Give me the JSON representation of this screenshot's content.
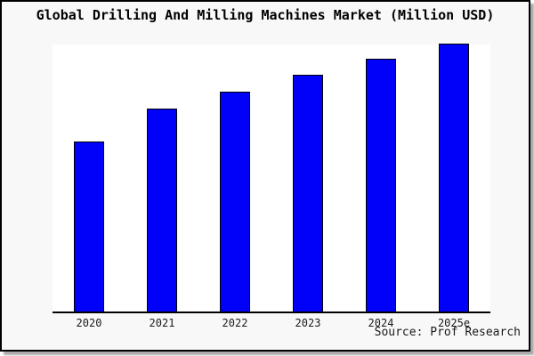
{
  "page": {
    "background": "#ffffff",
    "frame_background": "#f8f8f8",
    "frame_border_color": "#000000",
    "plot_background": "#ffffff",
    "axis_color": "#000000"
  },
  "chart_data": {
    "type": "bar",
    "title": "Global Drilling And Milling Machines Market (Million USD)",
    "categories": [
      "2020",
      "2021",
      "2022",
      "2023",
      "2024",
      "2025e"
    ],
    "values": [
      63.3,
      75.7,
      82.0,
      88.3,
      94.3,
      100
    ],
    "values_note": "No y-axis ticks or data labels are shown in the chart; values are relative bar heights as a percentage of the tallest (2025e) bar.",
    "xlabel": "",
    "ylabel": "",
    "grid": false,
    "legend": false,
    "bar_color": "#0101fa",
    "bar_border_color": "#000000",
    "source": "Source: Prof Research"
  }
}
